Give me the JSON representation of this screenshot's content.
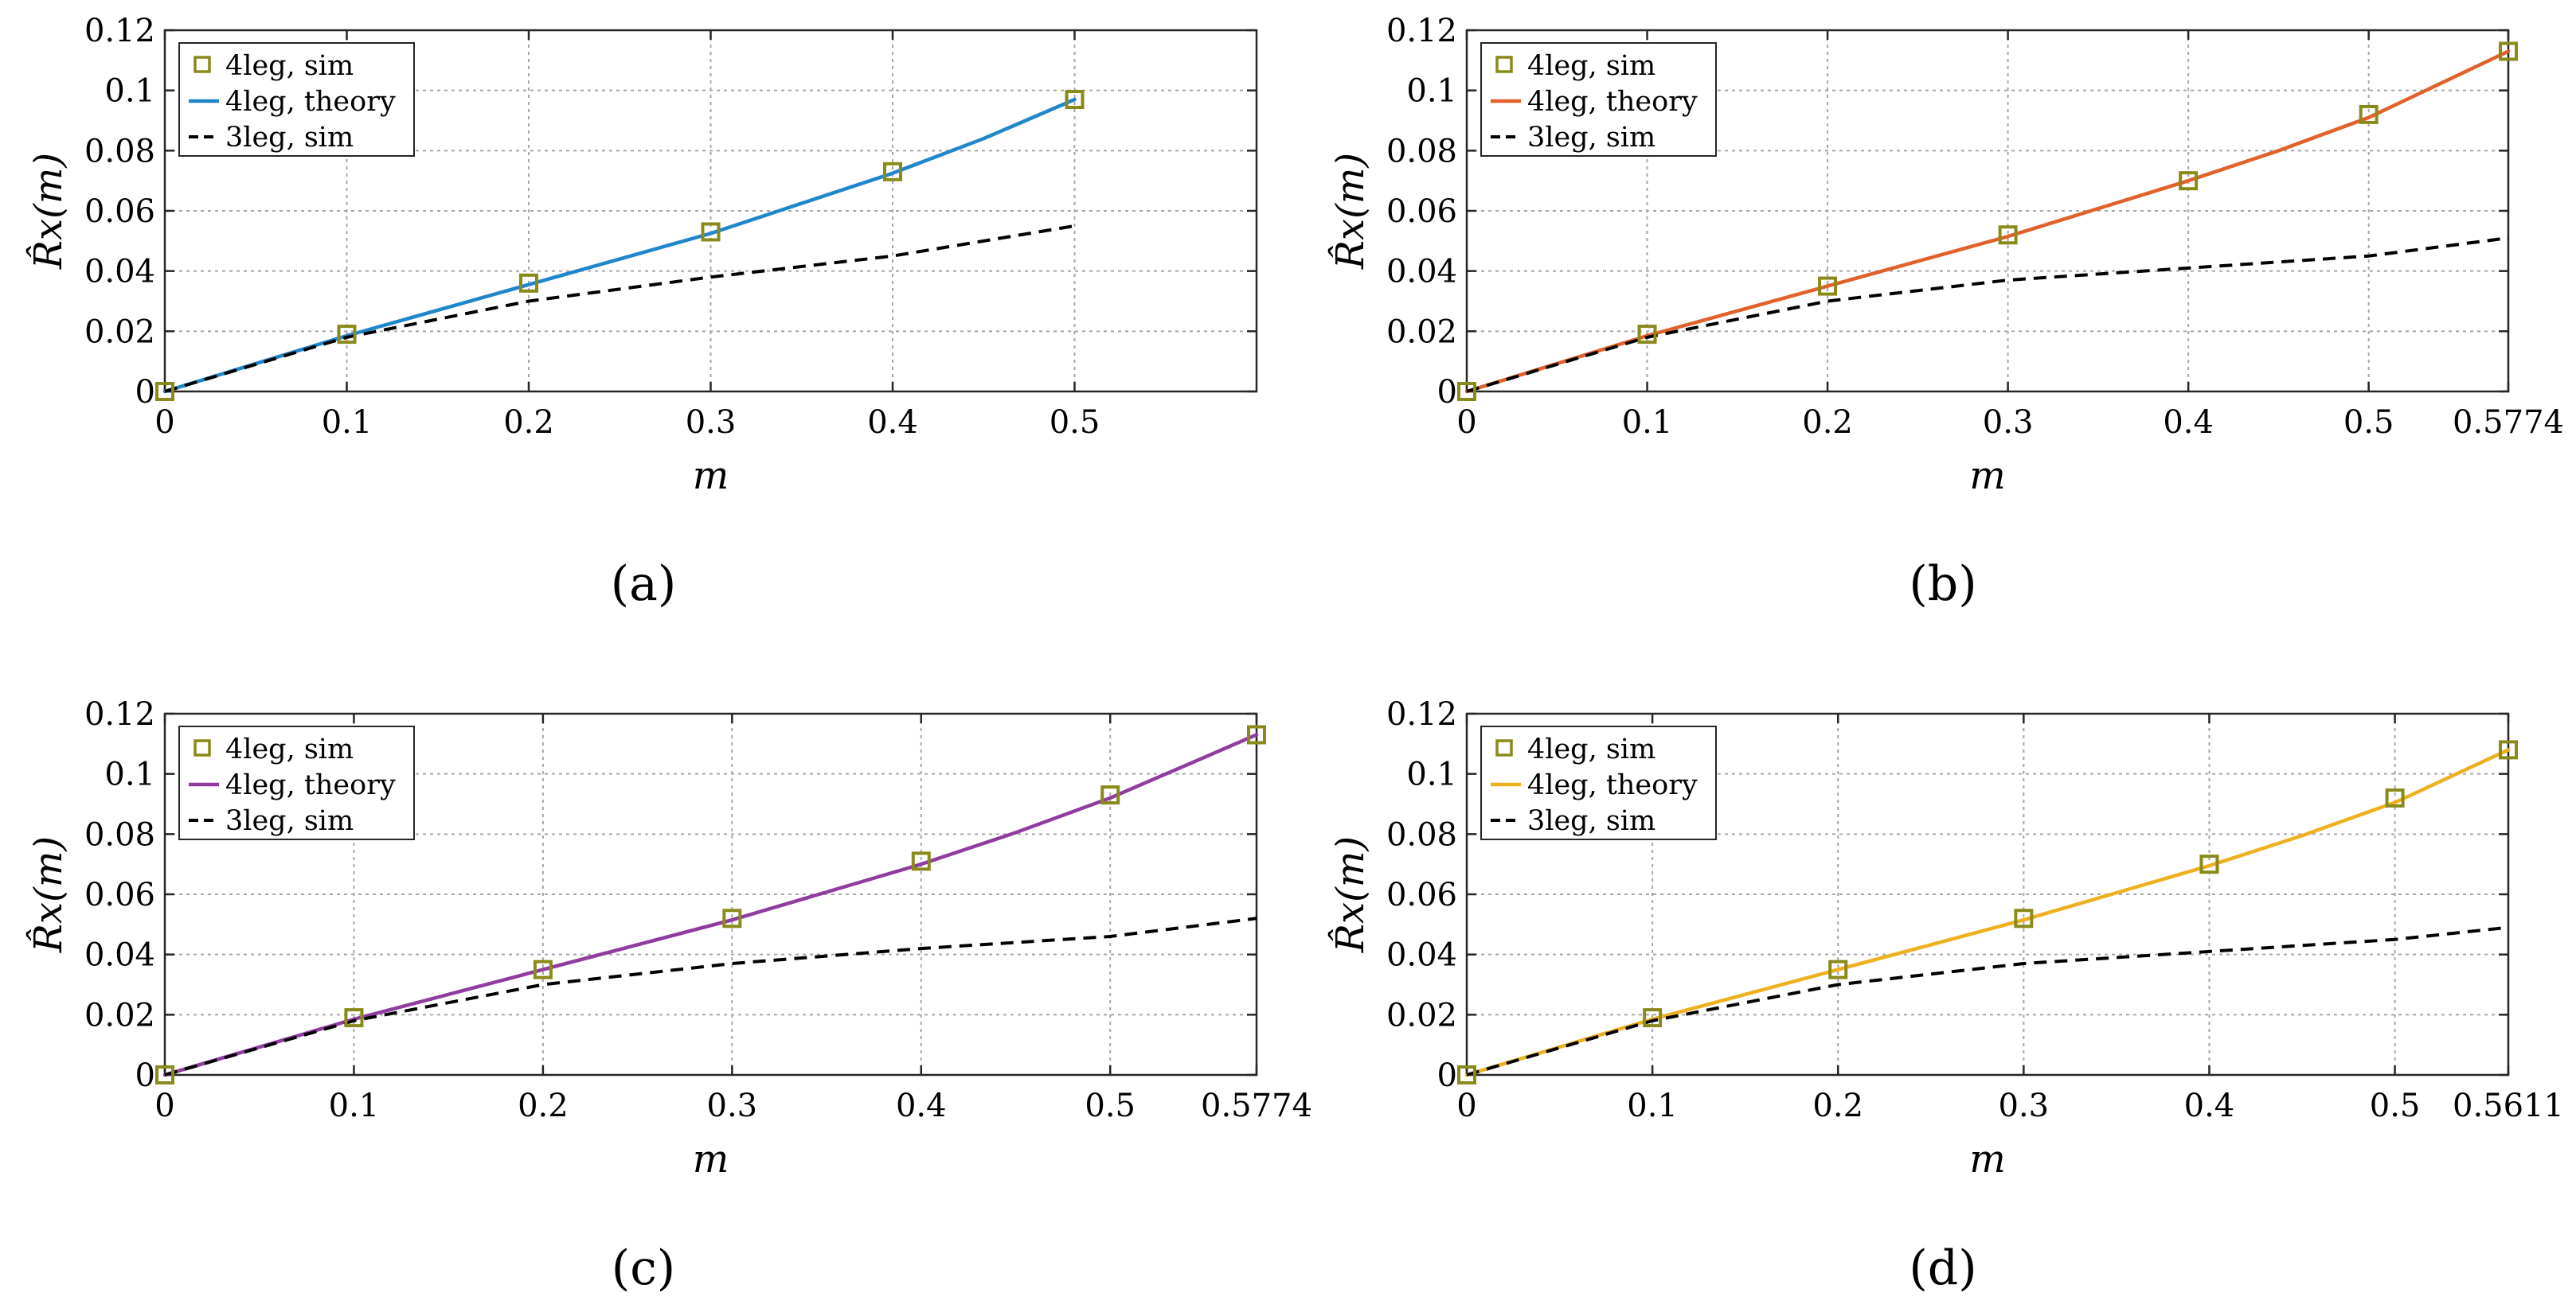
{
  "chart_data": [
    {
      "id": "a",
      "type": "line",
      "caption": "(a)",
      "xlabel": "m",
      "ylabel": "R̂x(m)",
      "xlim": [
        0,
        0.6
      ],
      "ylim": [
        0,
        0.12
      ],
      "xticks": [
        0,
        0.1,
        0.2,
        0.3,
        0.4,
        0.5
      ],
      "xtick_labels": [
        "0",
        "0.1",
        "0.2",
        "0.3",
        "0.4",
        "0.5"
      ],
      "yticks": [
        0,
        0.02,
        0.04,
        0.06,
        0.08,
        0.1,
        0.12
      ],
      "ytick_labels": [
        "0",
        "0.02",
        "0.04",
        "0.06",
        "0.08",
        "0.1",
        "0.12"
      ],
      "grid": true,
      "legend_position": "top-left",
      "theory_color": "#1f86c9",
      "series": [
        {
          "name": "4leg, sim",
          "style": "markers",
          "x": [
            0,
            0.1,
            0.2,
            0.3,
            0.4,
            0.5
          ],
          "y": [
            0,
            0.019,
            0.036,
            0.053,
            0.073,
            0.097
          ]
        },
        {
          "name": "4leg, theory",
          "style": "solid",
          "x": [
            0,
            0.1,
            0.2,
            0.3,
            0.4,
            0.45,
            0.5
          ],
          "y": [
            0,
            0.0185,
            0.0355,
            0.0525,
            0.0725,
            0.084,
            0.097
          ]
        },
        {
          "name": "3leg, sim",
          "style": "dashed",
          "x": [
            0,
            0.1,
            0.2,
            0.3,
            0.4,
            0.5
          ],
          "y": [
            0,
            0.018,
            0.03,
            0.038,
            0.045,
            0.055
          ]
        }
      ]
    },
    {
      "id": "b",
      "type": "line",
      "caption": "(b)",
      "xlabel": "m",
      "ylabel": "R̂x(m)",
      "xlim": [
        0,
        0.5774
      ],
      "ylim": [
        0,
        0.12
      ],
      "xticks": [
        0,
        0.1,
        0.2,
        0.3,
        0.4,
        0.5,
        0.5774
      ],
      "xtick_labels": [
        "0",
        "0.1",
        "0.2",
        "0.3",
        "0.4",
        "0.5",
        "0.5774"
      ],
      "yticks": [
        0,
        0.02,
        0.04,
        0.06,
        0.08,
        0.1,
        0.12
      ],
      "ytick_labels": [
        "0",
        "0.02",
        "0.04",
        "0.06",
        "0.08",
        "0.1",
        "0.12"
      ],
      "grid": true,
      "legend_position": "top-left",
      "theory_color": "#e1612a",
      "series": [
        {
          "name": "4leg, sim",
          "style": "markers",
          "x": [
            0,
            0.1,
            0.2,
            0.3,
            0.4,
            0.5,
            0.5774
          ],
          "y": [
            0,
            0.019,
            0.035,
            0.052,
            0.07,
            0.092,
            0.113
          ]
        },
        {
          "name": "4leg, theory",
          "style": "solid",
          "x": [
            0,
            0.1,
            0.2,
            0.3,
            0.4,
            0.45,
            0.5,
            0.5774
          ],
          "y": [
            0,
            0.0185,
            0.035,
            0.0515,
            0.07,
            0.08,
            0.091,
            0.113
          ]
        },
        {
          "name": "3leg, sim",
          "style": "dashed",
          "x": [
            0,
            0.1,
            0.2,
            0.3,
            0.4,
            0.5,
            0.5774
          ],
          "y": [
            0,
            0.018,
            0.03,
            0.037,
            0.041,
            0.045,
            0.051
          ]
        }
      ]
    },
    {
      "id": "c",
      "type": "line",
      "caption": "(c)",
      "xlabel": "m",
      "ylabel": "R̂x(m)",
      "xlim": [
        0,
        0.5774
      ],
      "ylim": [
        0,
        0.12
      ],
      "xticks": [
        0,
        0.1,
        0.2,
        0.3,
        0.4,
        0.5,
        0.5774
      ],
      "xtick_labels": [
        "0",
        "0.1",
        "0.2",
        "0.3",
        "0.4",
        "0.5",
        "0.5774"
      ],
      "yticks": [
        0,
        0.02,
        0.04,
        0.06,
        0.08,
        0.1,
        0.12
      ],
      "ytick_labels": [
        "0",
        "0.02",
        "0.04",
        "0.06",
        "0.08",
        "0.1",
        "0.12"
      ],
      "grid": true,
      "legend_position": "top-left",
      "theory_color": "#8e3c9e",
      "series": [
        {
          "name": "4leg, sim",
          "style": "markers",
          "x": [
            0,
            0.1,
            0.2,
            0.3,
            0.4,
            0.5,
            0.5774
          ],
          "y": [
            0,
            0.019,
            0.035,
            0.052,
            0.071,
            0.093,
            0.113
          ]
        },
        {
          "name": "4leg, theory",
          "style": "solid",
          "x": [
            0,
            0.1,
            0.2,
            0.3,
            0.4,
            0.45,
            0.5,
            0.5774
          ],
          "y": [
            0,
            0.0185,
            0.035,
            0.0515,
            0.07,
            0.0805,
            0.092,
            0.113
          ]
        },
        {
          "name": "3leg, sim",
          "style": "dashed",
          "x": [
            0,
            0.1,
            0.2,
            0.3,
            0.4,
            0.5,
            0.5774
          ],
          "y": [
            0,
            0.018,
            0.03,
            0.037,
            0.042,
            0.046,
            0.052
          ]
        }
      ]
    },
    {
      "id": "d",
      "type": "line",
      "caption": "(d)",
      "xlabel": "m",
      "ylabel": "R̂x(m)",
      "xlim": [
        0,
        0.5611
      ],
      "ylim": [
        0,
        0.12
      ],
      "xticks": [
        0,
        0.1,
        0.2,
        0.3,
        0.4,
        0.5,
        0.5611
      ],
      "xtick_labels": [
        "0",
        "0.1",
        "0.2",
        "0.3",
        "0.4",
        "0.5",
        "0.5611"
      ],
      "yticks": [
        0,
        0.02,
        0.04,
        0.06,
        0.08,
        0.1,
        0.12
      ],
      "ytick_labels": [
        "0",
        "0.02",
        "0.04",
        "0.06",
        "0.08",
        "0.1",
        "0.12"
      ],
      "grid": true,
      "legend_position": "top-left",
      "theory_color": "#edb120",
      "series": [
        {
          "name": "4leg, sim",
          "style": "markers",
          "x": [
            0,
            0.1,
            0.2,
            0.3,
            0.4,
            0.5,
            0.5611
          ],
          "y": [
            0,
            0.019,
            0.035,
            0.052,
            0.07,
            0.092,
            0.108
          ]
        },
        {
          "name": "4leg, theory",
          "style": "solid",
          "x": [
            0,
            0.1,
            0.2,
            0.3,
            0.4,
            0.45,
            0.5,
            0.5611
          ],
          "y": [
            0,
            0.0185,
            0.035,
            0.0515,
            0.0695,
            0.0795,
            0.0905,
            0.108
          ]
        },
        {
          "name": "3leg, sim",
          "style": "dashed",
          "x": [
            0,
            0.1,
            0.2,
            0.3,
            0.4,
            0.5,
            0.5611
          ],
          "y": [
            0,
            0.018,
            0.03,
            0.037,
            0.041,
            0.045,
            0.049
          ]
        }
      ]
    }
  ],
  "colors": {
    "marker": "#8a8a1a",
    "grid": "#a6a6a6",
    "axis": "#262626",
    "dashed": "#000000"
  }
}
